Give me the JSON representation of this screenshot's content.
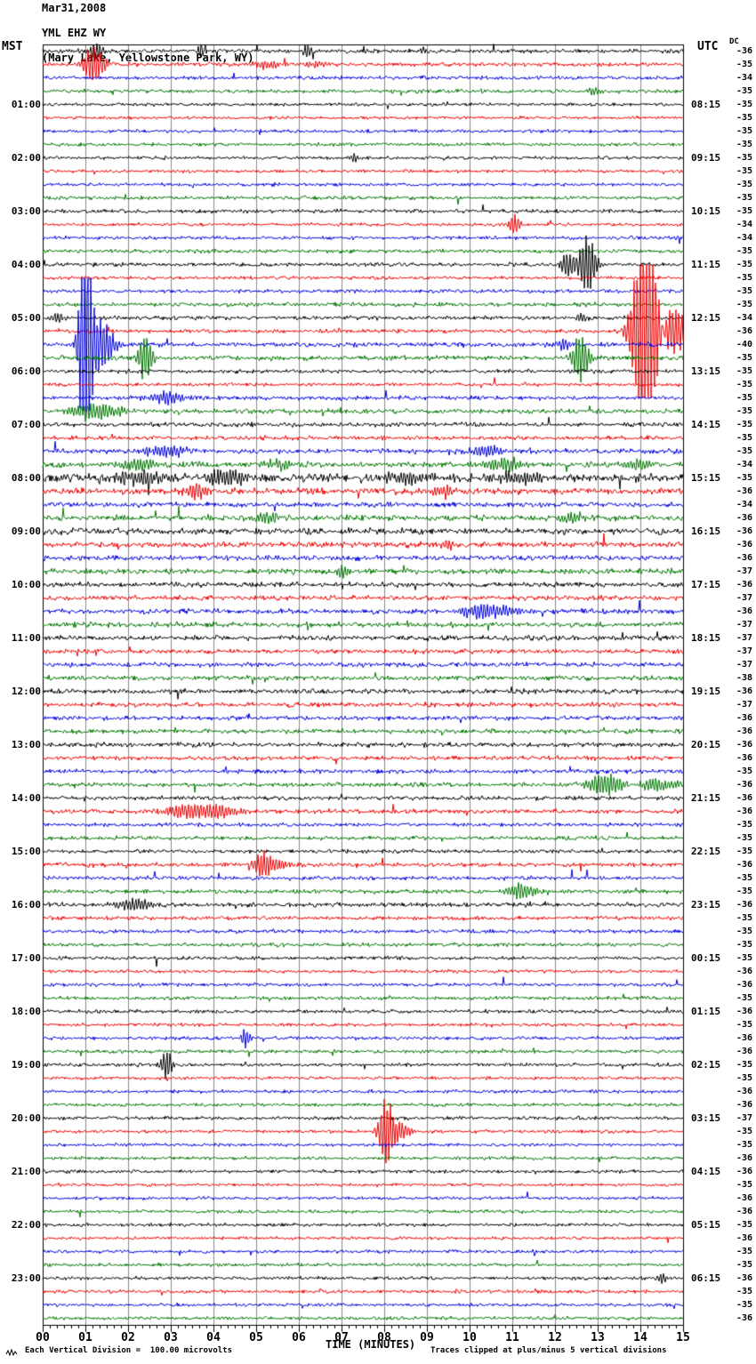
{
  "chart_data": {
    "type": "line",
    "subtype": "helicorder-seismogram",
    "title": "Mar31,2008",
    "station": "YML EHZ WY",
    "location": "(Mary Lake, Yellowstone Park, WY)",
    "left_axis_header": "MST",
    "right_axis_header": "UTC",
    "dc_header": "DC",
    "x_axis": {
      "label": "TIME (MINUTES)",
      "tick_labels": [
        "00",
        "01",
        "02",
        "03",
        "04",
        "05",
        "06",
        "07",
        "08",
        "09",
        "10",
        "11",
        "12",
        "13",
        "14",
        "15"
      ],
      "minutes_per_row": 15,
      "minor_ticks_per_minute": 6
    },
    "footer": {
      "scale_note": "Each Vertical Division =  100.00 microvolts",
      "clip_note": "Traces clipped at plus/minus 5 vertical divisions"
    },
    "clip_divisions": 5,
    "colors": {
      "trace_cycle": [
        "#000000",
        "#ee0000",
        "#0000dd",
        "#007700"
      ],
      "grid": "#8a8a8a",
      "border": "#000000"
    },
    "rows": [
      {
        "dc": -36,
        "amp": 1.6,
        "ev": [
          [
            1.25,
            9,
            0.12
          ],
          [
            3.7,
            8,
            0.08
          ],
          [
            6.2,
            8,
            0.08
          ],
          [
            8.9,
            5,
            0.06
          ]
        ]
      },
      {
        "dc": -35,
        "amp": 1.6,
        "ev": [
          [
            1.2,
            20,
            0.18
          ],
          [
            5.2,
            4,
            0.25
          ],
          [
            6.4,
            4,
            0.2
          ]
        ]
      },
      {
        "dc": -34,
        "amp": 1.4
      },
      {
        "dc": -35,
        "amp": 1.5,
        "ev": [
          [
            12.9,
            5,
            0.1
          ]
        ]
      },
      {
        "dc": -35,
        "amp": 1.3,
        "mst": "01:00",
        "utc": "08:15"
      },
      {
        "dc": -35,
        "amp": 1.2
      },
      {
        "dc": -35,
        "amp": 1.3
      },
      {
        "dc": -35,
        "amp": 1.4
      },
      {
        "dc": -35,
        "amp": 1.3,
        "mst": "02:00",
        "utc": "09:15",
        "ev": [
          [
            7.3,
            5,
            0.08
          ]
        ]
      },
      {
        "dc": -35,
        "amp": 1.2
      },
      {
        "dc": -35,
        "amp": 1.3
      },
      {
        "dc": -35,
        "amp": 1.4
      },
      {
        "dc": -35,
        "amp": 1.5,
        "mst": "03:00",
        "utc": "10:15"
      },
      {
        "dc": -34,
        "amp": 1.3,
        "ev": [
          [
            11.05,
            12,
            0.1
          ]
        ]
      },
      {
        "dc": -34,
        "amp": 1.4
      },
      {
        "dc": -35,
        "amp": 1.5
      },
      {
        "dc": -35,
        "amp": 1.5,
        "mst": "04:00",
        "utc": "11:15",
        "ev": [
          [
            12.3,
            14,
            0.12
          ],
          [
            12.75,
            32,
            0.15
          ]
        ]
      },
      {
        "dc": -35,
        "amp": 1.3
      },
      {
        "dc": -35,
        "amp": 1.4
      },
      {
        "dc": -35,
        "amp": 1.6
      },
      {
        "dc": -34,
        "amp": 1.6,
        "mst": "05:00",
        "utc": "12:15",
        "ev": [
          [
            0.35,
            5,
            0.12
          ],
          [
            12.6,
            4,
            0.1
          ]
        ]
      },
      {
        "dc": -36,
        "amp": 1.5,
        "ev": [
          [
            14.15,
            150,
            0.22
          ],
          [
            14.55,
            28,
            0.35
          ],
          [
            14.9,
            10,
            0.4
          ]
        ]
      },
      {
        "dc": -40,
        "amp": 1.8,
        "ev": [
          [
            1.0,
            150,
            0.1
          ],
          [
            1.3,
            30,
            0.25
          ],
          [
            12.2,
            5,
            0.15
          ]
        ]
      },
      {
        "dc": -35,
        "amp": 1.8,
        "ev": [
          [
            2.4,
            25,
            0.12
          ],
          [
            12.6,
            26,
            0.15
          ]
        ]
      },
      {
        "dc": -35,
        "amp": 1.5,
        "mst": "06:00",
        "utc": "13:15"
      },
      {
        "dc": -35,
        "amp": 1.4
      },
      {
        "dc": -35,
        "amp": 1.6,
        "ev": [
          [
            2.9,
            7,
            0.3
          ]
        ]
      },
      {
        "dc": -35,
        "amp": 1.8,
        "ev": [
          [
            1.2,
            8,
            0.5
          ]
        ]
      },
      {
        "dc": -35,
        "amp": 1.7,
        "mst": "07:00",
        "utc": "14:15"
      },
      {
        "dc": -35,
        "amp": 1.6
      },
      {
        "dc": -35,
        "amp": 1.9,
        "ev": [
          [
            2.9,
            6,
            0.35
          ],
          [
            10.4,
            5,
            0.4
          ]
        ]
      },
      {
        "dc": -34,
        "amp": 2.2,
        "ev": [
          [
            2.2,
            6,
            0.35
          ],
          [
            5.6,
            5,
            0.3
          ],
          [
            10.8,
            6,
            0.4
          ],
          [
            13.9,
            6,
            0.3
          ]
        ]
      },
      {
        "dc": -35,
        "amp": 3.2,
        "mst": "08:00",
        "utc": "15:15",
        "ev": [
          [
            2.3,
            7,
            0.5
          ],
          [
            4.3,
            9,
            0.3
          ],
          [
            8.6,
            7,
            0.4
          ],
          [
            11.2,
            6,
            0.4
          ]
        ]
      },
      {
        "dc": -36,
        "amp": 2.4,
        "ev": [
          [
            3.6,
            9,
            0.2
          ],
          [
            9.4,
            6,
            0.25
          ]
        ]
      },
      {
        "dc": -34,
        "amp": 2.0
      },
      {
        "dc": -36,
        "amp": 2.2,
        "ev": [
          [
            5.2,
            5,
            0.3
          ],
          [
            12.4,
            5,
            0.25
          ]
        ]
      },
      {
        "dc": -36,
        "amp": 2.4,
        "mst": "09:00",
        "utc": "16:15"
      },
      {
        "dc": -36,
        "amp": 2.2,
        "ev": [
          [
            9.5,
            6,
            0.12
          ]
        ]
      },
      {
        "dc": -36,
        "amp": 2.0
      },
      {
        "dc": -37,
        "amp": 2.2,
        "ev": [
          [
            7.0,
            7,
            0.1
          ]
        ]
      },
      {
        "dc": -36,
        "amp": 2.0,
        "mst": "10:00",
        "utc": "17:15"
      },
      {
        "dc": -37,
        "amp": 1.9
      },
      {
        "dc": -36,
        "amp": 1.9,
        "ev": [
          [
            10.3,
            8,
            0.35
          ],
          [
            10.9,
            5,
            0.3
          ]
        ]
      },
      {
        "dc": -37,
        "amp": 2.0
      },
      {
        "dc": -37,
        "amp": 2.0,
        "mst": "11:00",
        "utc": "18:15"
      },
      {
        "dc": -37,
        "amp": 1.8
      },
      {
        "dc": -37,
        "amp": 1.8
      },
      {
        "dc": -38,
        "amp": 1.9
      },
      {
        "dc": -36,
        "amp": 1.9,
        "mst": "12:00",
        "utc": "19:15"
      },
      {
        "dc": -37,
        "amp": 1.8
      },
      {
        "dc": -36,
        "amp": 1.7
      },
      {
        "dc": -36,
        "amp": 1.8
      },
      {
        "dc": -36,
        "amp": 1.8,
        "mst": "13:00",
        "utc": "20:15"
      },
      {
        "dc": -36,
        "amp": 1.7
      },
      {
        "dc": -35,
        "amp": 1.6
      },
      {
        "dc": -36,
        "amp": 1.8,
        "ev": [
          [
            13.2,
            12,
            0.3
          ],
          [
            14.4,
            7,
            0.35
          ]
        ]
      },
      {
        "dc": -36,
        "amp": 1.6,
        "mst": "14:00",
        "utc": "21:15"
      },
      {
        "dc": -36,
        "amp": 1.7,
        "ev": [
          [
            3.4,
            7,
            0.45
          ],
          [
            4.2,
            5,
            0.3
          ]
        ]
      },
      {
        "dc": -35,
        "amp": 1.5
      },
      {
        "dc": -35,
        "amp": 1.6
      },
      {
        "dc": -35,
        "amp": 1.5,
        "mst": "15:00",
        "utc": "22:15"
      },
      {
        "dc": -36,
        "amp": 1.6,
        "ev": [
          [
            5.15,
            14,
            0.15
          ],
          [
            5.5,
            5,
            0.3
          ]
        ]
      },
      {
        "dc": -35,
        "amp": 1.5
      },
      {
        "dc": -35,
        "amp": 1.7,
        "ev": [
          [
            11.2,
            8,
            0.3
          ]
        ]
      },
      {
        "dc": -36,
        "amp": 1.7,
        "mst": "16:00",
        "utc": "23:15",
        "ev": [
          [
            2.1,
            6,
            0.35
          ]
        ]
      },
      {
        "dc": -35,
        "amp": 1.5
      },
      {
        "dc": -35,
        "amp": 1.5
      },
      {
        "dc": -35,
        "amp": 1.5
      },
      {
        "dc": -35,
        "amp": 1.4,
        "mst": "17:00",
        "utc": "00:15"
      },
      {
        "dc": -36,
        "amp": 1.3
      },
      {
        "dc": -36,
        "amp": 1.4
      },
      {
        "dc": -35,
        "amp": 1.4
      },
      {
        "dc": -36,
        "amp": 1.4,
        "mst": "18:00",
        "utc": "01:15"
      },
      {
        "dc": -35,
        "amp": 1.3
      },
      {
        "dc": -36,
        "amp": 1.4,
        "ev": [
          [
            4.75,
            12,
            0.08
          ]
        ]
      },
      {
        "dc": -36,
        "amp": 1.4
      },
      {
        "dc": -35,
        "amp": 1.4,
        "mst": "19:00",
        "utc": "02:15",
        "ev": [
          [
            2.9,
            16,
            0.1
          ]
        ]
      },
      {
        "dc": -35,
        "amp": 1.3
      },
      {
        "dc": -36,
        "amp": 1.3
      },
      {
        "dc": -36,
        "amp": 1.4
      },
      {
        "dc": -37,
        "amp": 1.4,
        "mst": "20:00",
        "utc": "03:15"
      },
      {
        "dc": -35,
        "amp": 1.3,
        "ev": [
          [
            8.05,
            38,
            0.12
          ],
          [
            8.25,
            12,
            0.25
          ]
        ]
      },
      {
        "dc": -35,
        "amp": 1.3
      },
      {
        "dc": -36,
        "amp": 1.3
      },
      {
        "dc": -36,
        "amp": 1.3,
        "mst": "21:00",
        "utc": "04:15"
      },
      {
        "dc": -35,
        "amp": 1.2
      },
      {
        "dc": -36,
        "amp": 1.3
      },
      {
        "dc": -36,
        "amp": 1.3
      },
      {
        "dc": -35,
        "amp": 1.3,
        "mst": "22:00",
        "utc": "05:15"
      },
      {
        "dc": -36,
        "amp": 1.2
      },
      {
        "dc": -35,
        "amp": 1.3
      },
      {
        "dc": -35,
        "amp": 1.3
      },
      {
        "dc": -36,
        "amp": 1.3,
        "mst": "23:00",
        "utc": "06:15",
        "ev": [
          [
            14.5,
            6,
            0.08
          ]
        ]
      },
      {
        "dc": -35,
        "amp": 1.3
      },
      {
        "dc": -35,
        "amp": 1.3
      },
      {
        "dc": -36,
        "amp": 1.3
      }
    ]
  }
}
